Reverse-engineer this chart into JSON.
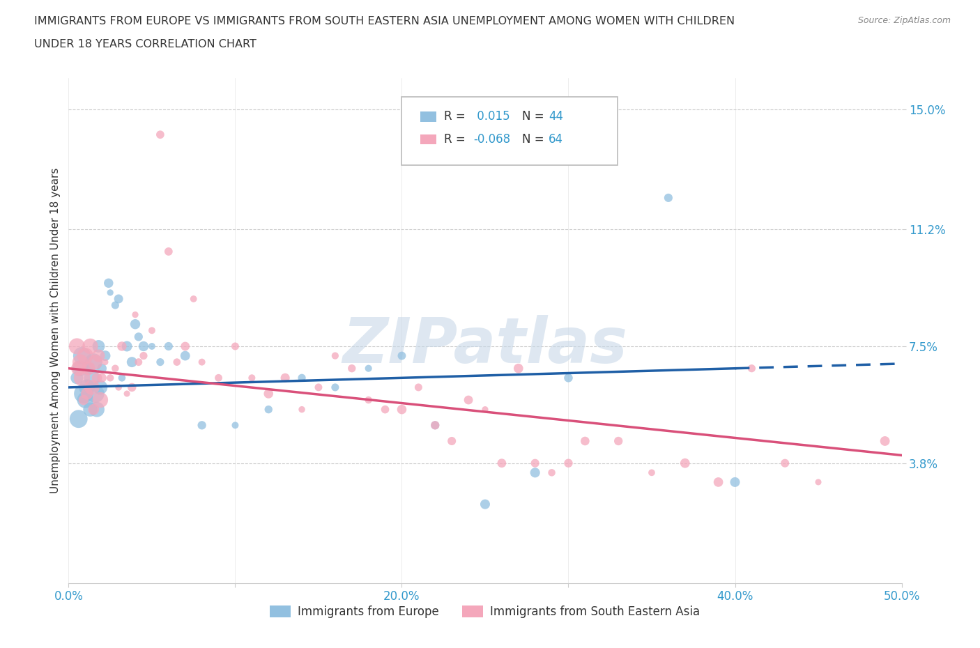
{
  "title_line1": "IMMIGRANTS FROM EUROPE VS IMMIGRANTS FROM SOUTH EASTERN ASIA UNEMPLOYMENT AMONG WOMEN WITH CHILDREN",
  "title_line2": "UNDER 18 YEARS CORRELATION CHART",
  "source": "Source: ZipAtlas.com",
  "ylabel": "Unemployment Among Women with Children Under 18 years",
  "xlim": [
    0,
    50
  ],
  "ylim": [
    0,
    16
  ],
  "yticks": [
    3.8,
    7.5,
    11.2,
    15.0
  ],
  "ytick_labels": [
    "3.8%",
    "7.5%",
    "11.2%",
    "15.0%"
  ],
  "xticks": [
    0,
    10,
    20,
    30,
    40,
    50
  ],
  "xtick_labels": [
    "0.0%",
    "",
    "20.0%",
    "",
    "40.0%",
    "50.0%"
  ],
  "legend_r1": "0.015",
  "legend_n1": "44",
  "legend_r2": "-0.068",
  "legend_n2": "64",
  "blue_color": "#92c0e0",
  "pink_color": "#f4a7bb",
  "trend_blue": "#1f5fa6",
  "trend_pink": "#d9507a",
  "watermark": "ZIPatlas",
  "blue_scatter": [
    [
      0.5,
      6.5
    ],
    [
      0.6,
      5.2
    ],
    [
      0.7,
      6.8
    ],
    [
      0.8,
      7.2
    ],
    [
      0.9,
      6.0
    ],
    [
      1.0,
      5.8
    ],
    [
      1.1,
      6.2
    ],
    [
      1.2,
      6.8
    ],
    [
      1.3,
      5.5
    ],
    [
      1.4,
      6.5
    ],
    [
      1.5,
      7.0
    ],
    [
      1.6,
      6.0
    ],
    [
      1.7,
      5.5
    ],
    [
      1.8,
      7.5
    ],
    [
      1.9,
      6.2
    ],
    [
      2.0,
      6.8
    ],
    [
      2.2,
      7.2
    ],
    [
      2.4,
      9.5
    ],
    [
      2.5,
      9.2
    ],
    [
      2.8,
      8.8
    ],
    [
      3.0,
      9.0
    ],
    [
      3.2,
      6.5
    ],
    [
      3.5,
      7.5
    ],
    [
      3.8,
      7.0
    ],
    [
      4.0,
      8.2
    ],
    [
      4.2,
      7.8
    ],
    [
      4.5,
      7.5
    ],
    [
      5.0,
      7.5
    ],
    [
      5.5,
      7.0
    ],
    [
      6.0,
      7.5
    ],
    [
      7.0,
      7.2
    ],
    [
      8.0,
      5.0
    ],
    [
      10.0,
      5.0
    ],
    [
      12.0,
      5.5
    ],
    [
      14.0,
      6.5
    ],
    [
      16.0,
      6.2
    ],
    [
      18.0,
      6.8
    ],
    [
      20.0,
      7.2
    ],
    [
      22.0,
      5.0
    ],
    [
      25.0,
      2.5
    ],
    [
      28.0,
      3.5
    ],
    [
      30.0,
      6.5
    ],
    [
      36.0,
      12.2
    ],
    [
      40.0,
      3.2
    ]
  ],
  "pink_scatter": [
    [
      0.5,
      7.5
    ],
    [
      0.6,
      6.8
    ],
    [
      0.7,
      7.0
    ],
    [
      0.8,
      6.5
    ],
    [
      0.9,
      5.8
    ],
    [
      1.0,
      7.2
    ],
    [
      1.1,
      6.0
    ],
    [
      1.2,
      6.8
    ],
    [
      1.3,
      7.5
    ],
    [
      1.4,
      6.2
    ],
    [
      1.5,
      5.5
    ],
    [
      1.6,
      7.0
    ],
    [
      1.7,
      6.5
    ],
    [
      1.8,
      7.2
    ],
    [
      1.9,
      5.8
    ],
    [
      2.0,
      6.5
    ],
    [
      2.2,
      7.0
    ],
    [
      2.5,
      6.5
    ],
    [
      2.8,
      6.8
    ],
    [
      3.0,
      6.2
    ],
    [
      3.2,
      7.5
    ],
    [
      3.5,
      6.0
    ],
    [
      3.8,
      6.2
    ],
    [
      4.0,
      8.5
    ],
    [
      4.2,
      7.0
    ],
    [
      4.5,
      7.2
    ],
    [
      5.0,
      8.0
    ],
    [
      5.5,
      14.2
    ],
    [
      6.0,
      10.5
    ],
    [
      6.5,
      7.0
    ],
    [
      7.0,
      7.5
    ],
    [
      7.5,
      9.0
    ],
    [
      8.0,
      7.0
    ],
    [
      9.0,
      6.5
    ],
    [
      10.0,
      7.5
    ],
    [
      11.0,
      6.5
    ],
    [
      12.0,
      6.0
    ],
    [
      13.0,
      6.5
    ],
    [
      14.0,
      5.5
    ],
    [
      15.0,
      6.2
    ],
    [
      16.0,
      7.2
    ],
    [
      17.0,
      6.8
    ],
    [
      18.0,
      5.8
    ],
    [
      19.0,
      5.5
    ],
    [
      20.0,
      5.5
    ],
    [
      21.0,
      6.2
    ],
    [
      22.0,
      5.0
    ],
    [
      23.0,
      4.5
    ],
    [
      24.0,
      5.8
    ],
    [
      25.0,
      5.5
    ],
    [
      26.0,
      3.8
    ],
    [
      27.0,
      6.8
    ],
    [
      28.0,
      3.8
    ],
    [
      29.0,
      3.5
    ],
    [
      30.0,
      3.8
    ],
    [
      31.0,
      4.5
    ],
    [
      33.0,
      4.5
    ],
    [
      35.0,
      3.5
    ],
    [
      37.0,
      3.8
    ],
    [
      39.0,
      3.2
    ],
    [
      41.0,
      6.8
    ],
    [
      43.0,
      3.8
    ],
    [
      45.0,
      3.2
    ],
    [
      49.0,
      4.5
    ]
  ],
  "grid_color": "#cccccc",
  "bg_color": "#ffffff",
  "label_blue": "Immigrants from Europe",
  "label_pink": "Immigrants from South Eastern Asia",
  "title_color": "#333333",
  "tick_color": "#3399cc",
  "watermark_color": "#c8d8e8",
  "blue_intercept": 6.2,
  "blue_slope": 0.015,
  "pink_intercept": 6.8,
  "pink_slope": -0.055
}
